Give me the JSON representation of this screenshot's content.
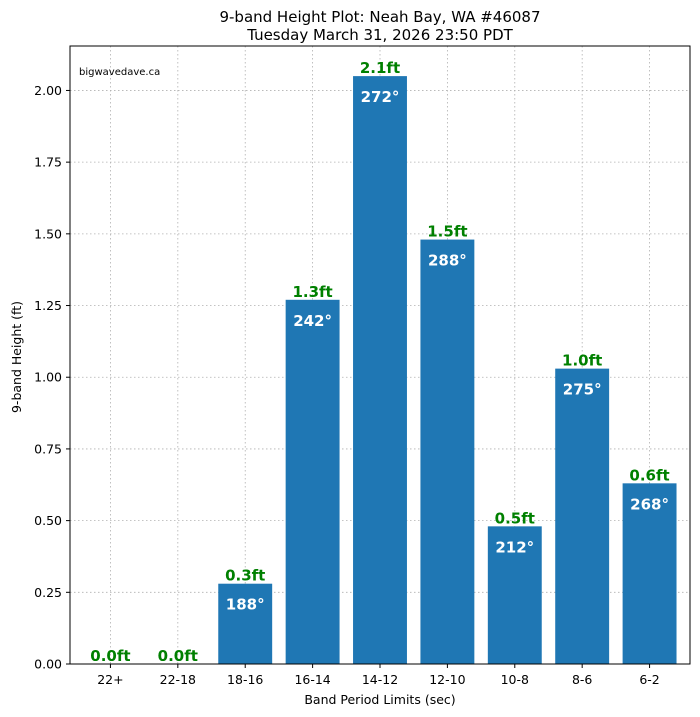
{
  "watermark": "bigwavedave.ca",
  "chart_data": {
    "type": "bar",
    "title": "9-band Height Plot: Neah Bay, WA #46087",
    "subtitle": "Tuesday March 31, 2026 23:50 PDT",
    "xlabel": "Band Period Limits (sec)",
    "ylabel": "9-band Height (ft)",
    "ylim": [
      0,
      2.155
    ],
    "yticks": [
      "0.00",
      "0.25",
      "0.50",
      "0.75",
      "1.00",
      "1.25",
      "1.50",
      "1.75",
      "2.00"
    ],
    "grid": true,
    "categories": [
      "22+",
      "22-18",
      "18-16",
      "16-14",
      "14-12",
      "12-10",
      "10-8",
      "8-6",
      "6-2"
    ],
    "values": [
      0.0,
      0.0,
      0.28,
      1.27,
      2.05,
      1.48,
      0.48,
      1.03,
      0.63
    ],
    "height_labels": [
      "0.0ft",
      "0.0ft",
      "0.3ft",
      "1.3ft",
      "2.1ft",
      "1.5ft",
      "0.5ft",
      "1.0ft",
      "0.6ft"
    ],
    "direction_labels": [
      "",
      "",
      "188°",
      "242°",
      "272°",
      "288°",
      "212°",
      "275°",
      "268°"
    ],
    "bar_color": "#1f77b4",
    "height_label_color": "#008000",
    "direction_label_color": "#ffffff"
  }
}
